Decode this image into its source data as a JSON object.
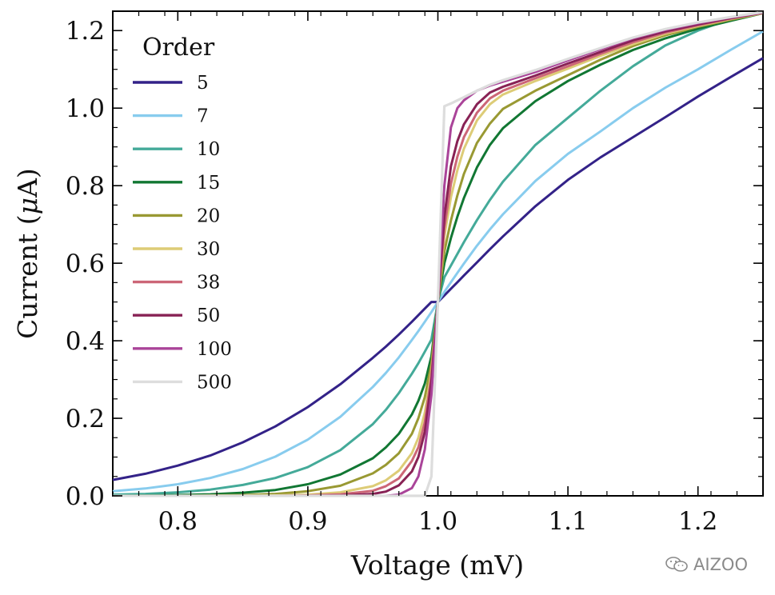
{
  "chart_data": {
    "type": "line",
    "title": "",
    "xlabel": "Voltage (mV)",
    "ylabel_prefix": "Current (",
    "ylabel_symbol": "μ",
    "ylabel_suffix": "A)",
    "xlim": [
      0.75,
      1.25
    ],
    "ylim": [
      0.0,
      1.25
    ],
    "xticks": [
      0.8,
      0.9,
      1.0,
      1.1,
      1.2
    ],
    "xtick_labels": [
      "0.8",
      "0.9",
      "1.0",
      "1.1",
      "1.2"
    ],
    "yticks": [
      0.0,
      0.2,
      0.4,
      0.6,
      0.8,
      1.0,
      1.2
    ],
    "ytick_labels": [
      "0.0",
      "0.2",
      "0.4",
      "0.6",
      "0.8",
      "1.0",
      "1.2"
    ],
    "grid": false,
    "legend": {
      "title": "Order",
      "placement": "upper-left"
    },
    "x": [
      0.75,
      0.775,
      0.8,
      0.825,
      0.85,
      0.875,
      0.9,
      0.925,
      0.95,
      0.96,
      0.97,
      0.98,
      0.985,
      0.99,
      0.995,
      1.0,
      1.005,
      1.01,
      1.015,
      1.02,
      1.03,
      1.04,
      1.05,
      1.075,
      1.1,
      1.125,
      1.15,
      1.175,
      1.2,
      1.225,
      1.25
    ],
    "series": [
      {
        "name": "5",
        "color": "#332288",
        "values": [
          0.041,
          0.057,
          0.078,
          0.104,
          0.138,
          0.179,
          0.229,
          0.288,
          0.356,
          0.385,
          0.416,
          0.449,
          0.466,
          0.483,
          0.5,
          0.5,
          0.517,
          0.534,
          0.551,
          0.568,
          0.602,
          0.636,
          0.669,
          0.747,
          0.815,
          0.873,
          0.925,
          0.977,
          1.03,
          1.08,
          1.129
        ]
      },
      {
        "name": "7",
        "color": "#88CCEE",
        "values": [
          0.012,
          0.019,
          0.03,
          0.046,
          0.069,
          0.101,
          0.145,
          0.204,
          0.281,
          0.317,
          0.357,
          0.402,
          0.425,
          0.449,
          0.474,
          0.5,
          0.526,
          0.551,
          0.575,
          0.599,
          0.645,
          0.687,
          0.726,
          0.812,
          0.882,
          0.94,
          1.0,
          1.053,
          1.1,
          1.15,
          1.198
        ]
      },
      {
        "name": "10",
        "color": "#44AA99",
        "values": [
          0.003,
          0.005,
          0.009,
          0.016,
          0.028,
          0.046,
          0.074,
          0.118,
          0.185,
          0.222,
          0.265,
          0.315,
          0.342,
          0.372,
          0.403,
          0.5,
          0.564,
          0.594,
          0.624,
          0.654,
          0.711,
          0.763,
          0.81,
          0.905,
          0.975,
          1.045,
          1.108,
          1.162,
          1.2,
          1.23,
          1.245
        ]
      },
      {
        "name": "15",
        "color": "#117733",
        "values": [
          0.0,
          0.001,
          0.002,
          0.004,
          0.008,
          0.015,
          0.03,
          0.055,
          0.097,
          0.125,
          0.16,
          0.21,
          0.245,
          0.29,
          0.36,
          0.5,
          0.6,
          0.665,
          0.72,
          0.768,
          0.847,
          0.905,
          0.948,
          1.018,
          1.07,
          1.112,
          1.15,
          1.18,
          1.205,
          1.225,
          1.245
        ]
      },
      {
        "name": "20",
        "color": "#999933",
        "values": [
          0.0,
          0.0,
          0.0,
          0.001,
          0.002,
          0.005,
          0.012,
          0.026,
          0.058,
          0.08,
          0.11,
          0.16,
          0.2,
          0.255,
          0.34,
          0.5,
          0.63,
          0.71,
          0.775,
          0.83,
          0.91,
          0.96,
          0.998,
          1.045,
          1.085,
          1.125,
          1.16,
          1.188,
          1.21,
          1.228,
          1.245
        ]
      },
      {
        "name": "30",
        "color": "#DDCC77",
        "values": [
          0.0,
          0.0,
          0.0,
          0.0,
          0.0,
          0.001,
          0.003,
          0.009,
          0.025,
          0.04,
          0.065,
          0.11,
          0.15,
          0.215,
          0.32,
          0.5,
          0.67,
          0.77,
          0.84,
          0.895,
          0.968,
          1.01,
          1.035,
          1.07,
          1.102,
          1.135,
          1.165,
          1.192,
          1.212,
          1.23,
          1.245
        ]
      },
      {
        "name": "38",
        "color": "#CC6677",
        "values": [
          0.0,
          0.0,
          0.0,
          0.0,
          0.0,
          0.0,
          0.001,
          0.004,
          0.013,
          0.025,
          0.045,
          0.09,
          0.125,
          0.19,
          0.31,
          0.5,
          0.69,
          0.805,
          0.875,
          0.925,
          0.988,
          1.025,
          1.045,
          1.077,
          1.108,
          1.14,
          1.17,
          1.195,
          1.214,
          1.231,
          1.246
        ]
      },
      {
        "name": "50",
        "color": "#882255",
        "values": [
          0.0,
          0.0,
          0.0,
          0.0,
          0.0,
          0.0,
          0.0,
          0.001,
          0.005,
          0.011,
          0.027,
          0.063,
          0.1,
          0.165,
          0.295,
          0.5,
          0.72,
          0.85,
          0.915,
          0.958,
          1.01,
          1.04,
          1.055,
          1.084,
          1.115,
          1.145,
          1.175,
          1.198,
          1.216,
          1.232,
          1.246
        ]
      },
      {
        "name": "100",
        "color": "#AA4499",
        "values": [
          0.0,
          0.0,
          0.0,
          0.0,
          0.0,
          0.0,
          0.0,
          0.0,
          0.0,
          0.0,
          0.003,
          0.02,
          0.05,
          0.12,
          0.26,
          0.5,
          0.8,
          0.95,
          1.0,
          1.02,
          1.045,
          1.058,
          1.068,
          1.093,
          1.123,
          1.152,
          1.18,
          1.202,
          1.219,
          1.234,
          1.247
        ]
      },
      {
        "name": "500",
        "color": "#DDDDDD",
        "values": [
          0.0,
          0.0,
          0.0,
          0.0,
          0.0,
          0.0,
          0.0,
          0.0,
          0.0,
          0.0,
          0.0,
          0.0,
          0.0,
          0.0,
          0.05,
          0.5,
          1.005,
          1.012,
          1.02,
          1.028,
          1.045,
          1.06,
          1.072,
          1.098,
          1.127,
          1.155,
          1.182,
          1.204,
          1.221,
          1.235,
          1.248
        ]
      }
    ]
  },
  "watermark": {
    "text": "AIZOO",
    "icon": "wechat-icon"
  }
}
